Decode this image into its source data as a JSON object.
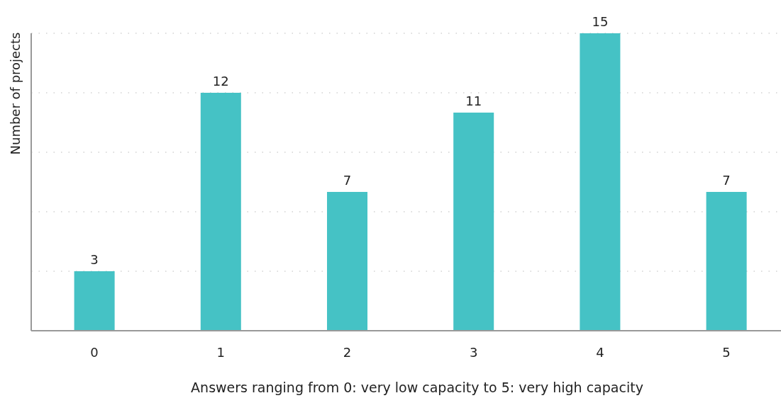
{
  "chart_data": {
    "type": "bar",
    "xlabel": "Answers ranging from 0: very low capacity to 5: very high capacity",
    "ylabel": "Number of projects",
    "categories": [
      "0",
      "1",
      "2",
      "3",
      "4",
      "5"
    ],
    "values": [
      3,
      12,
      7,
      11,
      15,
      7
    ],
    "color": "#45c2c5",
    "ylim": [
      0,
      15
    ],
    "yticks": [
      {
        "value": 0,
        "label": null
      },
      {
        "value": 3,
        "label": null
      },
      {
        "value": 6,
        "label": null
      },
      {
        "value": 9,
        "label": null
      },
      {
        "value": 12,
        "label": null
      },
      {
        "value": 15,
        "label": null
      }
    ],
    "grid": "y",
    "data_labels": true,
    "tick_labels": "x"
  }
}
